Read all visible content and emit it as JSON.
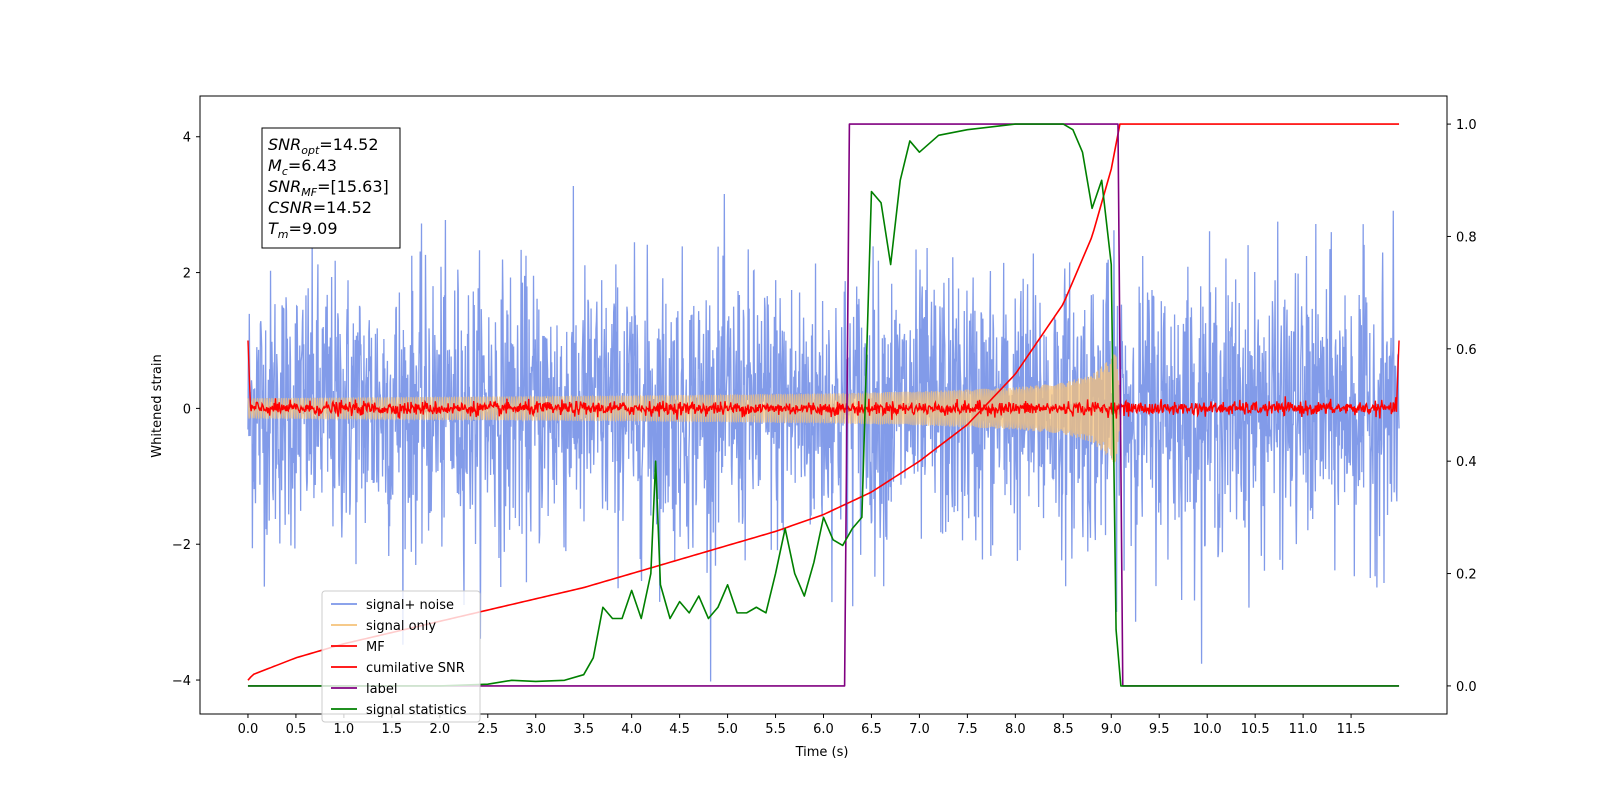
{
  "chart_data": {
    "type": "line",
    "title": "",
    "xlabel": "Time (s)",
    "ylabel": "Whitened strain",
    "ylabel_right": "",
    "xlim": [
      -0.5,
      12.5
    ],
    "ylim": [
      -4.5,
      4.6
    ],
    "ylim_right": [
      -0.05,
      1.05
    ],
    "x_ticks": [
      0.0,
      0.5,
      1.0,
      1.5,
      2.0,
      2.5,
      3.0,
      3.5,
      4.0,
      4.5,
      5.0,
      5.5,
      6.0,
      6.5,
      7.0,
      7.5,
      8.0,
      8.5,
      9.0,
      9.5,
      10.0,
      10.5,
      11.0,
      11.5
    ],
    "x_tick_labels": [
      "0.0",
      "0.5",
      "1.0",
      "1.5",
      "2.0",
      "2.5",
      "3.0",
      "3.5",
      "4.0",
      "4.5",
      "5.0",
      "5.5",
      "6.0",
      "6.5",
      "7.0",
      "7.5",
      "8.0",
      "8.5",
      "9.0",
      "9.5",
      "10.0",
      "10.5",
      "11.0",
      "11.5"
    ],
    "y_ticks": [
      -4,
      -2,
      0,
      2,
      4
    ],
    "y_tick_labels": [
      "−4",
      "−2",
      "0",
      "2",
      "4"
    ],
    "y_ticks_right": [
      0.0,
      0.2,
      0.4,
      0.6,
      0.8,
      1.0
    ],
    "y_tick_labels_right": [
      "0.0",
      "0.2",
      "0.4",
      "0.6",
      "0.8",
      "1.0"
    ],
    "grid": false,
    "legend_position": "lower-left",
    "annotation": [
      {
        "base": "SNR",
        "sub": "opt",
        "value": "=14.52"
      },
      {
        "base": "M",
        "sub": "c",
        "value": "=6.43"
      },
      {
        "base": "SNR",
        "sub": "MF",
        "value": "=[15.63]"
      },
      {
        "base": "CSNR",
        "sub": "",
        "value": "=14.52"
      },
      {
        "base": "T",
        "sub": "m",
        "value": "=9.09"
      }
    ],
    "series": [
      {
        "name": "signal+ noise",
        "axis": "left",
        "color": "#7b96e8",
        "kind": "noise_band",
        "x_range": [
          0.0,
          12.0
        ],
        "noise_sigma": 1.0,
        "typical_peak": 2.8,
        "max_value": 4.0,
        "min_value": -4.1
      },
      {
        "name": "signal only",
        "axis": "left",
        "color": "#f5c27a",
        "kind": "chirp_envelope",
        "x": [
          0.0,
          2.0,
          4.0,
          6.0,
          7.0,
          8.0,
          8.5,
          8.8,
          9.0,
          9.05,
          9.09
        ],
        "envelope": [
          0.15,
          0.17,
          0.19,
          0.22,
          0.25,
          0.31,
          0.38,
          0.5,
          0.75,
          0.85,
          0.3
        ]
      },
      {
        "name": "MF",
        "axis": "left",
        "color": "#ff0000",
        "kind": "noise_band",
        "x_range": [
          0.0,
          12.0
        ],
        "noise_sigma": 0.05,
        "typical_peak": 0.15,
        "edge_spikes": [
          1.0,
          1.0
        ]
      },
      {
        "name": "cumilative SNR",
        "axis": "right",
        "color": "#ff0000",
        "x": [
          0.0,
          0.05,
          0.5,
          1.0,
          1.5,
          2.0,
          2.5,
          3.0,
          3.5,
          4.0,
          4.5,
          5.0,
          5.5,
          6.0,
          6.5,
          7.0,
          7.5,
          8.0,
          8.5,
          8.8,
          9.0,
          9.09,
          12.0
        ],
        "values": [
          0.01,
          0.02,
          0.05,
          0.075,
          0.095,
          0.115,
          0.135,
          0.155,
          0.175,
          0.2,
          0.225,
          0.25,
          0.275,
          0.305,
          0.345,
          0.4,
          0.465,
          0.555,
          0.68,
          0.8,
          0.92,
          1.0,
          1.0
        ]
      },
      {
        "name": "label",
        "axis": "right",
        "color": "#800080",
        "x": [
          0.0,
          6.22,
          6.27,
          9.07,
          9.12,
          12.0
        ],
        "values": [
          0.0,
          0.0,
          1.0,
          1.0,
          0.0,
          0.0
        ]
      },
      {
        "name": "signal statistics",
        "axis": "right",
        "color": "#008000",
        "x": [
          0.0,
          0.5,
          1.0,
          1.5,
          2.0,
          2.5,
          2.75,
          3.0,
          3.3,
          3.5,
          3.6,
          3.7,
          3.8,
          3.9,
          4.0,
          4.1,
          4.2,
          4.25,
          4.3,
          4.4,
          4.5,
          4.6,
          4.7,
          4.8,
          4.9,
          5.0,
          5.1,
          5.2,
          5.3,
          5.4,
          5.5,
          5.6,
          5.7,
          5.8,
          5.9,
          6.0,
          6.1,
          6.2,
          6.3,
          6.4,
          6.5,
          6.6,
          6.7,
          6.8,
          6.9,
          7.0,
          7.2,
          7.5,
          8.0,
          8.5,
          8.6,
          8.7,
          8.8,
          8.9,
          9.0,
          9.05,
          9.1,
          12.0
        ],
        "values": [
          0.0,
          0.0,
          0.0,
          0.0,
          0.0,
          0.003,
          0.01,
          0.008,
          0.01,
          0.02,
          0.05,
          0.14,
          0.12,
          0.12,
          0.17,
          0.12,
          0.2,
          0.4,
          0.18,
          0.12,
          0.15,
          0.13,
          0.16,
          0.12,
          0.14,
          0.18,
          0.13,
          0.13,
          0.14,
          0.13,
          0.2,
          0.28,
          0.2,
          0.16,
          0.22,
          0.3,
          0.26,
          0.25,
          0.28,
          0.3,
          0.88,
          0.86,
          0.75,
          0.9,
          0.97,
          0.95,
          0.98,
          0.99,
          1.0,
          1.0,
          0.99,
          0.95,
          0.85,
          0.9,
          0.75,
          0.1,
          0.0,
          0.0
        ]
      }
    ]
  }
}
